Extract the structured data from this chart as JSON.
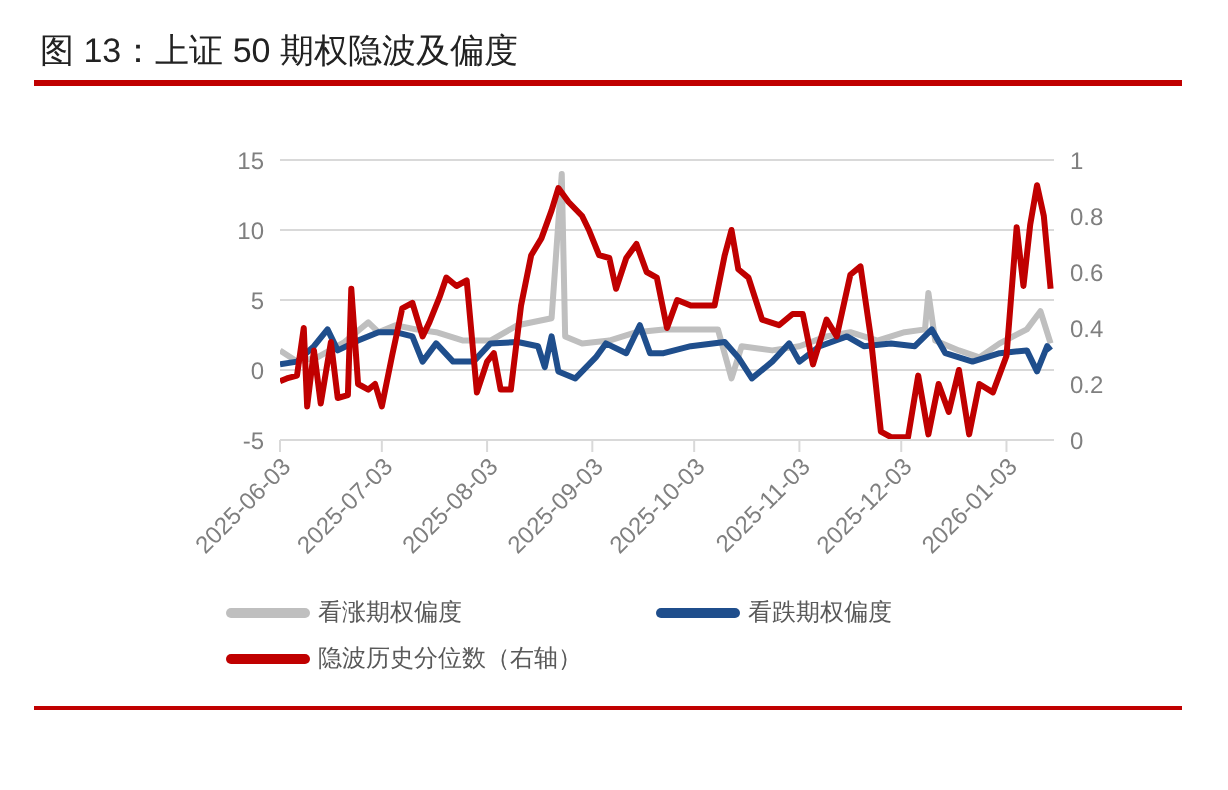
{
  "chart_data": {
    "type": "line",
    "title": "图 13：上证 50 期权隐波及偏度",
    "xlim": [
      "2025-06-03",
      "2026-01-17"
    ],
    "xticks": [
      "2025-06-03",
      "2025-07-03",
      "2025-08-03",
      "2025-09-03",
      "2025-10-03",
      "2025-11-03",
      "2025-12-03",
      "2026-01-03"
    ],
    "ylim": [
      -5,
      15
    ],
    "yticks": [
      -5,
      0,
      5,
      10,
      15
    ],
    "y2lim": [
      0,
      1
    ],
    "y2ticks": [
      0,
      0.2,
      0.4,
      0.6,
      0.8,
      1
    ],
    "grid": "y",
    "legend": "bottom",
    "marker": "none",
    "line_style": "solid",
    "series": [
      {
        "name": "看涨期权偏度",
        "color": "#bfbfbf",
        "x": [
          "2025-06-03",
          "2025-06-08",
          "2025-06-14",
          "2025-06-22",
          "2025-06-29",
          "2025-07-02",
          "2025-07-07",
          "2025-07-13",
          "2025-07-19",
          "2025-07-27",
          "2025-08-04",
          "2025-08-12",
          "2025-08-22",
          "2025-08-25",
          "2025-08-26",
          "2025-08-31",
          "2025-09-08",
          "2025-09-16",
          "2025-09-24",
          "2025-10-02",
          "2025-10-10",
          "2025-10-14",
          "2025-10-17",
          "2025-10-26",
          "2025-11-03",
          "2025-11-11",
          "2025-11-18",
          "2025-11-26",
          "2025-12-04",
          "2025-12-10",
          "2025-12-11",
          "2025-12-13",
          "2025-12-20",
          "2025-12-26",
          "2026-01-01",
          "2026-01-09",
          "2026-01-13",
          "2026-01-16"
        ],
        "values": [
          1.4,
          0.6,
          0.9,
          2.0,
          3.4,
          2.7,
          3.2,
          2.9,
          2.7,
          2.1,
          2.1,
          3.2,
          3.7,
          14.0,
          2.4,
          1.9,
          2.1,
          2.7,
          2.9,
          2.9,
          2.9,
          -0.6,
          1.7,
          1.4,
          1.7,
          2.4,
          2.7,
          2.1,
          2.7,
          2.9,
          5.5,
          2.1,
          1.4,
          0.9,
          1.9,
          2.9,
          4.2,
          1.9
        ]
      },
      {
        "name": "看跌期权偏度",
        "color": "#1f4e8c",
        "x": [
          "2025-06-03",
          "2025-06-08",
          "2025-06-13",
          "2025-06-17",
          "2025-06-20",
          "2025-06-26",
          "2025-07-02",
          "2025-07-07",
          "2025-07-12",
          "2025-07-15",
          "2025-07-19",
          "2025-07-24",
          "2025-07-30",
          "2025-08-04",
          "2025-08-12",
          "2025-08-18",
          "2025-08-20",
          "2025-08-22",
          "2025-08-24",
          "2025-08-29",
          "2025-09-04",
          "2025-09-07",
          "2025-09-13",
          "2025-09-17",
          "2025-09-20",
          "2025-09-24",
          "2025-10-02",
          "2025-10-12",
          "2025-10-16",
          "2025-10-20",
          "2025-10-26",
          "2025-10-31",
          "2025-11-03",
          "2025-11-09",
          "2025-11-17",
          "2025-11-22",
          "2025-11-30",
          "2025-12-07",
          "2025-12-12",
          "2025-12-16",
          "2025-12-24",
          "2026-01-01",
          "2026-01-09",
          "2026-01-12",
          "2026-01-15",
          "2026-01-16"
        ],
        "values": [
          0.4,
          0.6,
          1.7,
          2.9,
          1.4,
          2.1,
          2.7,
          2.7,
          2.4,
          0.6,
          1.9,
          0.6,
          0.6,
          1.9,
          2.0,
          1.7,
          0.2,
          2.4,
          -0.1,
          -0.6,
          0.9,
          1.9,
          1.2,
          3.2,
          1.2,
          1.2,
          1.7,
          2.0,
          0.9,
          -0.6,
          0.6,
          1.9,
          0.6,
          1.7,
          2.4,
          1.7,
          1.9,
          1.7,
          2.9,
          1.2,
          0.6,
          1.2,
          1.4,
          -0.1,
          1.7,
          1.4
        ]
      },
      {
        "name": "隐波历史分位数（右轴）",
        "color": "#c00000",
        "axis": "y2",
        "x": [
          "2025-06-03",
          "2025-06-05",
          "2025-06-08",
          "2025-06-10",
          "2025-06-11",
          "2025-06-13",
          "2025-06-15",
          "2025-06-18",
          "2025-06-20",
          "2025-06-23",
          "2025-06-24",
          "2025-06-26",
          "2025-06-29",
          "2025-07-01",
          "2025-07-03",
          "2025-07-06",
          "2025-07-09",
          "2025-07-12",
          "2025-07-15",
          "2025-07-17",
          "2025-07-20",
          "2025-07-22",
          "2025-07-25",
          "2025-07-28",
          "2025-07-31",
          "2025-08-03",
          "2025-08-05",
          "2025-08-07",
          "2025-08-10",
          "2025-08-13",
          "2025-08-16",
          "2025-08-19",
          "2025-08-22",
          "2025-08-24",
          "2025-08-27",
          "2025-08-31",
          "2025-09-02",
          "2025-09-05",
          "2025-09-08",
          "2025-09-10",
          "2025-09-13",
          "2025-09-16",
          "2025-09-19",
          "2025-09-22",
          "2025-09-25",
          "2025-09-28",
          "2025-10-02",
          "2025-10-09",
          "2025-10-12",
          "2025-10-14",
          "2025-10-16",
          "2025-10-19",
          "2025-10-23",
          "2025-10-28",
          "2025-11-01",
          "2025-11-04",
          "2025-11-07",
          "2025-11-11",
          "2025-11-14",
          "2025-11-18",
          "2025-11-21",
          "2025-11-24",
          "2025-11-27",
          "2025-11-30",
          "2025-12-05",
          "2025-12-08",
          "2025-12-11",
          "2025-12-14",
          "2025-12-17",
          "2025-12-20",
          "2025-12-23",
          "2025-12-26",
          "2025-12-30",
          "2026-01-03",
          "2026-01-06",
          "2026-01-08",
          "2026-01-10",
          "2026-01-12",
          "2026-01-14",
          "2026-01-16"
        ],
        "values": [
          0.21,
          0.22,
          0.23,
          0.4,
          0.12,
          0.32,
          0.13,
          0.35,
          0.15,
          0.16,
          0.54,
          0.2,
          0.18,
          0.2,
          0.12,
          0.3,
          0.47,
          0.49,
          0.37,
          0.42,
          0.51,
          0.58,
          0.55,
          0.57,
          0.17,
          0.28,
          0.31,
          0.18,
          0.18,
          0.48,
          0.66,
          0.72,
          0.82,
          0.9,
          0.85,
          0.8,
          0.75,
          0.66,
          0.65,
          0.54,
          0.65,
          0.7,
          0.6,
          0.58,
          0.4,
          0.5,
          0.48,
          0.48,
          0.66,
          0.75,
          0.61,
          0.58,
          0.43,
          0.41,
          0.45,
          0.45,
          0.27,
          0.43,
          0.37,
          0.59,
          0.62,
          0.37,
          0.03,
          0.01,
          0.01,
          0.23,
          0.02,
          0.2,
          0.1,
          0.25,
          0.02,
          0.2,
          0.17,
          0.3,
          0.76,
          0.55,
          0.77,
          0.91,
          0.8,
          0.54
        ]
      }
    ]
  }
}
